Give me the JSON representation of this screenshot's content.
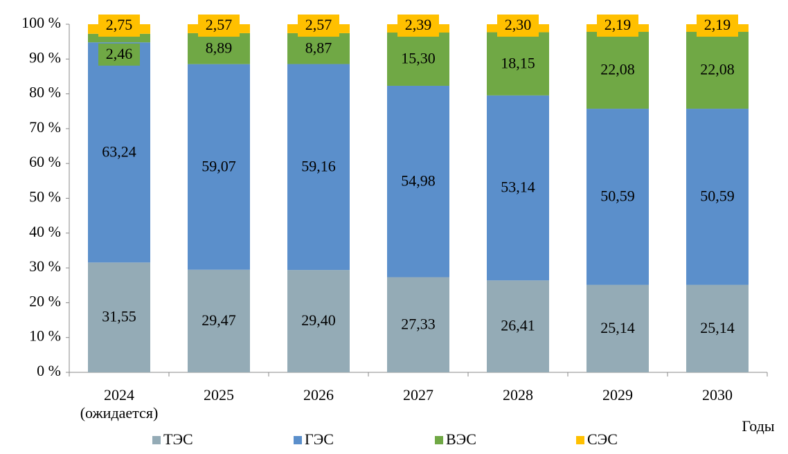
{
  "chart_data": {
    "type": "stacked_bar",
    "x_label": "Годы",
    "categories": [
      "2024 (ожидается)",
      "2025",
      "2026",
      "2027",
      "2028",
      "2029",
      "2030"
    ],
    "series": [
      {
        "name": "ТЭС",
        "color": "#94abb6",
        "values": [
          31.55,
          29.47,
          29.4,
          27.33,
          26.41,
          25.14,
          25.14
        ],
        "value_labels": [
          "31,55",
          "29,47",
          "29,40",
          "27,33",
          "26,41",
          "25,14",
          "25,14"
        ]
      },
      {
        "name": "ГЭС",
        "color": "#5b8fcb",
        "values": [
          63.24,
          59.07,
          59.16,
          54.98,
          53.14,
          50.59,
          50.59
        ],
        "value_labels": [
          "63,24",
          "59,07",
          "59,16",
          "54,98",
          "53,14",
          "50,59",
          "50,59"
        ]
      },
      {
        "name": "ВЭС",
        "color": "#70a845",
        "values": [
          2.46,
          8.89,
          8.87,
          15.3,
          18.15,
          22.08,
          22.08
        ],
        "value_labels": [
          "2,46",
          "8,89",
          "8,87",
          "15,30",
          "18,15",
          "22,08",
          "22,08"
        ]
      },
      {
        "name": "СЭС",
        "color": "#ffc000",
        "values": [
          2.75,
          2.57,
          2.57,
          2.39,
          2.3,
          2.19,
          2.19
        ],
        "value_labels": [
          "2,75",
          "2,57",
          "2,57",
          "2,39",
          "2,30",
          "2,19",
          "2,19"
        ]
      }
    ],
    "ylim": [
      0,
      100
    ],
    "yticks": [
      {
        "value": 0,
        "label": "0 %"
      },
      {
        "value": 10,
        "label": "10 %"
      },
      {
        "value": 20,
        "label": "20 %"
      },
      {
        "value": 30,
        "label": "30 %"
      },
      {
        "value": 40,
        "label": "40 %"
      },
      {
        "value": 50,
        "label": "50 %"
      },
      {
        "value": 60,
        "label": "60 %"
      },
      {
        "value": 70,
        "label": "70 %"
      },
      {
        "value": 80,
        "label": "80 %"
      },
      {
        "value": 90,
        "label": "90 %"
      },
      {
        "value": 100,
        "label": "100 %"
      }
    ],
    "legend": "bottom"
  }
}
